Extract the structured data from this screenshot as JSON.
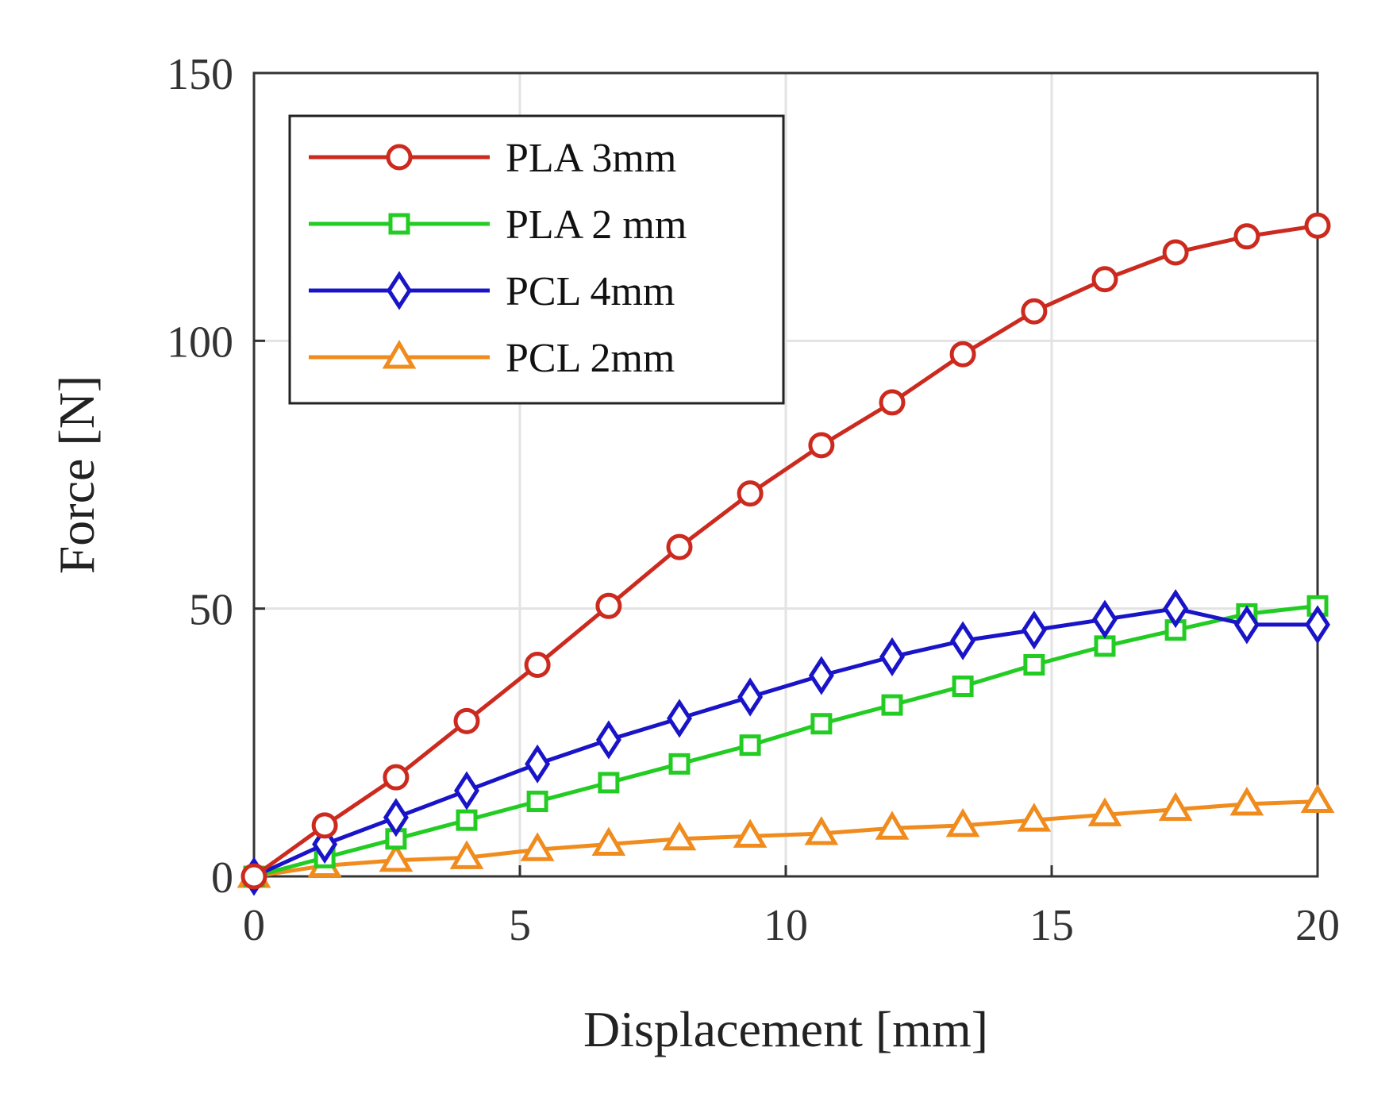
{
  "chart_data": {
    "type": "line",
    "title": "",
    "xlabel": "Displacement [mm]",
    "ylabel": "Force [N]",
    "xlim": [
      0,
      20
    ],
    "ylim": [
      0,
      150
    ],
    "xticks": [
      0,
      5,
      10,
      15,
      20
    ],
    "yticks": [
      0,
      50,
      100,
      150
    ],
    "grid": true,
    "legend_position": "top-left",
    "x": [
      0,
      1.33,
      2.67,
      4.0,
      5.33,
      6.67,
      8.0,
      9.33,
      10.67,
      12.0,
      13.33,
      14.67,
      16.0,
      17.33,
      18.67,
      20.0
    ],
    "series": [
      {
        "name": "PLA 3mm",
        "color": "#cc2a1e",
        "marker": "circle",
        "values": [
          0,
          9.5,
          18.5,
          29,
          39.5,
          50.5,
          61.5,
          71.5,
          80.5,
          88.5,
          97.5,
          105.5,
          111.5,
          116.5,
          119.5,
          121.5
        ]
      },
      {
        "name": "PLA 2 mm",
        "color": "#22cc22",
        "marker": "square",
        "values": [
          0,
          3.5,
          7,
          10.5,
          14,
          17.5,
          21,
          24.5,
          28.5,
          32,
          35.5,
          39.5,
          43,
          46,
          49,
          50.5
        ]
      },
      {
        "name": "PCL 4mm",
        "color": "#1a14c8",
        "marker": "diamond",
        "values": [
          0,
          6,
          11,
          16,
          21,
          25.5,
          29.5,
          33.5,
          37.5,
          41,
          44,
          46,
          48,
          50,
          47,
          47
        ]
      },
      {
        "name": "PCL 2mm",
        "color": "#f08c1e",
        "marker": "triangle",
        "values": [
          0,
          2,
          3,
          3.5,
          5,
          6,
          7,
          7.5,
          8,
          9,
          9.5,
          10.5,
          11.5,
          12.5,
          13.5,
          14
        ]
      }
    ]
  }
}
